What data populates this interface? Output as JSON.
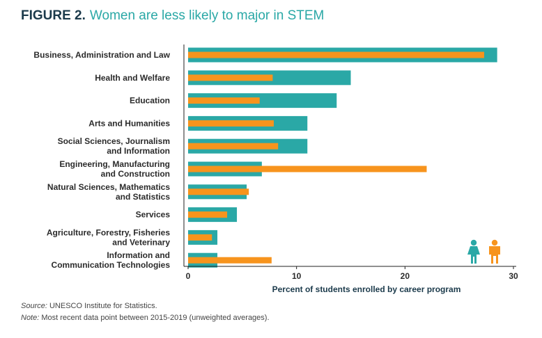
{
  "figure": {
    "label": "FIGURE 2.",
    "title": "Women are less likely to major in STEM"
  },
  "legend": [
    {
      "icon": "woman-icon",
      "color": "#2aa8a6"
    },
    {
      "icon": "man-icon",
      "color": "#f7941d"
    }
  ],
  "notes": {
    "source_label": "Source:",
    "source_text": " UNESCO Institute for Statistics.",
    "note_label": "Note:",
    "note_text": " Most recent data point between 2015-2019 (unweighted averages)."
  },
  "chart_data": {
    "type": "bar",
    "orientation": "horizontal",
    "categories": [
      [
        "Business, Administration and Law"
      ],
      [
        "Health and Welfare"
      ],
      [
        "Education"
      ],
      [
        "Arts and Humanities"
      ],
      [
        "Social Sciences, Journalism",
        "and Information"
      ],
      [
        "Engineering, Manufacturing",
        "and Construction"
      ],
      [
        "Natural Sciences, Mathematics",
        "and Statistics"
      ],
      [
        "Services"
      ],
      [
        "Agriculture, Forestry, Fisheries",
        "and Veterinary"
      ],
      [
        "Information and",
        "Communication Technologies"
      ]
    ],
    "series": [
      {
        "color": "#2aa8a6",
        "values": [
          28.5,
          15.0,
          13.7,
          11.0,
          11.0,
          6.8,
          5.4,
          4.5,
          2.7,
          2.7
        ]
      },
      {
        "color": "#f7941d",
        "values": [
          27.3,
          7.8,
          6.6,
          7.9,
          8.3,
          22.0,
          5.6,
          3.6,
          2.2,
          7.7
        ]
      }
    ],
    "xlabel": "Percent of students enrolled by career program",
    "xlim": [
      0,
      30
    ],
    "xticks": [
      0,
      10,
      20,
      30
    ],
    "grid": false,
    "legend_position": "bottom-right"
  }
}
